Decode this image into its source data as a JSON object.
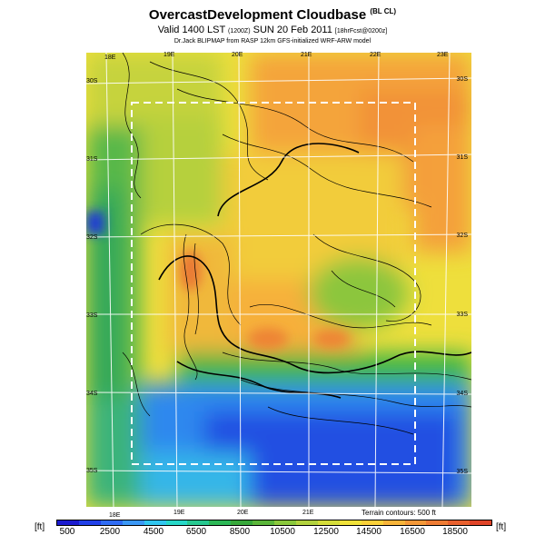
{
  "header": {
    "title": "OvercastDevelopment Cloudbase",
    "title_suffix": "(BL CL)",
    "subtitle_main": "Valid 1400 LST",
    "subtitle_utc": "(1200Z)",
    "subtitle_date": "SUN 20 Feb 2011",
    "subtitle_run": "[18hrFcst@0200z]",
    "credit": "Dr.Jack BLIPMAP from RASP 12km GFS-initialized WRF-ARW model"
  },
  "map": {
    "lon_top": [
      "18E",
      "19E",
      "20E",
      "21E",
      "22E",
      "23E"
    ],
    "lon_bottom": [
      "18E",
      "19E",
      "20E",
      "21E"
    ],
    "lat_left": [
      "30S",
      "31S",
      "32S",
      "33S",
      "34S",
      "35S"
    ],
    "lat_right": [
      "30S",
      "31S",
      "32S",
      "33S",
      "34S",
      "35S"
    ],
    "terrain_note": "Terrain contours: 500 ft"
  },
  "colorbar": {
    "unit_left": "[ft]",
    "unit_right": "[ft]",
    "ticks": [
      "500",
      "2500",
      "4500",
      "6500",
      "8500",
      "10500",
      "12500",
      "14500",
      "16500",
      "18500"
    ],
    "colors": [
      "#1b1bcf",
      "#2140e8",
      "#2f6cf4",
      "#3b98f6",
      "#31c6ef",
      "#27d8c8",
      "#27c890",
      "#2cb856",
      "#37a83a",
      "#5bb63a",
      "#8ac83c",
      "#b2d23e",
      "#d4dc3a",
      "#f0e23a",
      "#fad03a",
      "#f8b43a",
      "#f49838",
      "#ee7c34",
      "#e8602e",
      "#e04428"
    ]
  }
}
